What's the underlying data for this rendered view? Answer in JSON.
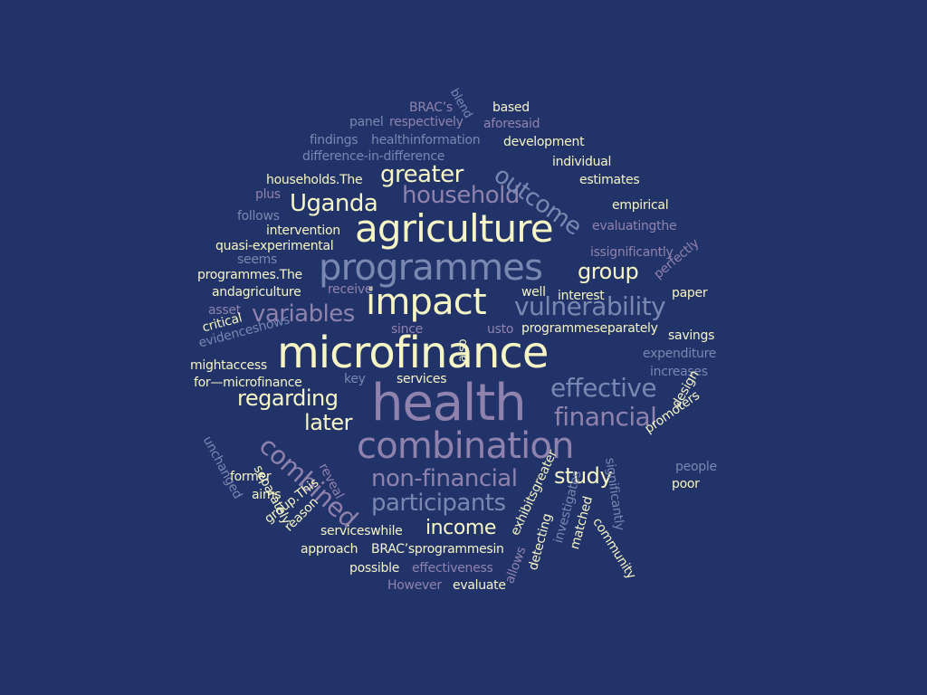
{
  "colors": {
    "background": "#22336a",
    "cream": "#f6f6c4",
    "mauve": "#8f83ad",
    "slate": "#7a87b0"
  },
  "words": [
    {
      "text": "microfinance",
      "tone": "cream"
    },
    {
      "text": "health",
      "tone": "mauve"
    },
    {
      "text": "agriculture",
      "tone": "cream"
    },
    {
      "text": "programmes",
      "tone": "slate"
    },
    {
      "text": "combination",
      "tone": "mauve"
    },
    {
      "text": "impact",
      "tone": "cream"
    },
    {
      "text": "vulnerability",
      "tone": "slate"
    },
    {
      "text": "financial",
      "tone": "mauve"
    },
    {
      "text": "effective",
      "tone": "slate"
    },
    {
      "text": "combined",
      "tone": "mauve"
    },
    {
      "text": "non-financial",
      "tone": "mauve"
    },
    {
      "text": "participants",
      "tone": "slate"
    },
    {
      "text": "household",
      "tone": "mauve"
    },
    {
      "text": "outcome",
      "tone": "slate"
    },
    {
      "text": "greater",
      "tone": "cream"
    },
    {
      "text": "Uganda",
      "tone": "cream"
    },
    {
      "text": "variables",
      "tone": "mauve"
    },
    {
      "text": "regarding",
      "tone": "cream"
    },
    {
      "text": "later",
      "tone": "cream"
    },
    {
      "text": "group",
      "tone": "cream"
    },
    {
      "text": "study",
      "tone": "cream"
    },
    {
      "text": "income",
      "tone": "cream"
    },
    {
      "text": "BRAC’s",
      "tone": "mauve"
    },
    {
      "text": "blend",
      "tone": "slate"
    },
    {
      "text": "based",
      "tone": "cream"
    },
    {
      "text": "panel",
      "tone": "slate"
    },
    {
      "text": "respectively",
      "tone": "mauve"
    },
    {
      "text": "aforesaid",
      "tone": "mauve"
    },
    {
      "text": "findings",
      "tone": "slate"
    },
    {
      "text": "healthinformation",
      "tone": "slate"
    },
    {
      "text": "development",
      "tone": "cream"
    },
    {
      "text": "difference-in-difference",
      "tone": "slate"
    },
    {
      "text": "individual",
      "tone": "cream"
    },
    {
      "text": "households.The",
      "tone": "cream"
    },
    {
      "text": "estimates",
      "tone": "cream"
    },
    {
      "text": "plus",
      "tone": "mauve"
    },
    {
      "text": "empirical",
      "tone": "cream"
    },
    {
      "text": "follows",
      "tone": "slate"
    },
    {
      "text": "evaluatingthe",
      "tone": "mauve"
    },
    {
      "text": "intervention",
      "tone": "cream"
    },
    {
      "text": "quasi-experimental",
      "tone": "cream"
    },
    {
      "text": "issignificantly",
      "tone": "mauve"
    },
    {
      "text": "seems",
      "tone": "slate"
    },
    {
      "text": "perfectly",
      "tone": "mauve"
    },
    {
      "text": "programmes.The",
      "tone": "cream"
    },
    {
      "text": "andagriculture",
      "tone": "cream"
    },
    {
      "text": "receive",
      "tone": "mauve"
    },
    {
      "text": "well",
      "tone": "cream"
    },
    {
      "text": "interest",
      "tone": "cream"
    },
    {
      "text": "paper",
      "tone": "cream"
    },
    {
      "text": "asset",
      "tone": "mauve"
    },
    {
      "text": "critical",
      "tone": "cream"
    },
    {
      "text": "since",
      "tone": "mauve"
    },
    {
      "text": "usto",
      "tone": "mauve"
    },
    {
      "text": "programmeseparately",
      "tone": "cream"
    },
    {
      "text": "savings",
      "tone": "cream"
    },
    {
      "text": "evidenceshows",
      "tone": "slate"
    },
    {
      "text": "expenditure",
      "tone": "slate"
    },
    {
      "text": "mightaccess",
      "tone": "cream"
    },
    {
      "text": "also",
      "tone": "cream"
    },
    {
      "text": "increases",
      "tone": "slate"
    },
    {
      "text": "for—microfinance",
      "tone": "cream"
    },
    {
      "text": "key",
      "tone": "slate"
    },
    {
      "text": "services",
      "tone": "cream"
    },
    {
      "text": "design",
      "tone": "cream"
    },
    {
      "text": "unchanged",
      "tone": "slate"
    },
    {
      "text": "promoters",
      "tone": "cream"
    },
    {
      "text": "separately",
      "tone": "cream"
    },
    {
      "text": "reveal",
      "tone": "mauve"
    },
    {
      "text": "significantly",
      "tone": "slate"
    },
    {
      "text": "people",
      "tone": "slate"
    },
    {
      "text": "former",
      "tone": "cream"
    },
    {
      "text": "poor",
      "tone": "cream"
    },
    {
      "text": "aims",
      "tone": "cream"
    },
    {
      "text": "group.This",
      "tone": "cream"
    },
    {
      "text": "reason",
      "tone": "cream"
    },
    {
      "text": "community",
      "tone": "cream"
    },
    {
      "text": "exhibitsgreater",
      "tone": "cream"
    },
    {
      "text": "investigates",
      "tone": "slate"
    },
    {
      "text": "serviceswhile",
      "tone": "cream"
    },
    {
      "text": "matched",
      "tone": "cream"
    },
    {
      "text": "approach",
      "tone": "cream"
    },
    {
      "text": "BRAC’sprogrammesin",
      "tone": "cream"
    },
    {
      "text": "detecting",
      "tone": "cream"
    },
    {
      "text": "possible",
      "tone": "cream"
    },
    {
      "text": "effectiveness",
      "tone": "mauve"
    },
    {
      "text": "allows",
      "tone": "mauve"
    },
    {
      "text": "However",
      "tone": "mauve"
    },
    {
      "text": "evaluate",
      "tone": "cream"
    }
  ]
}
